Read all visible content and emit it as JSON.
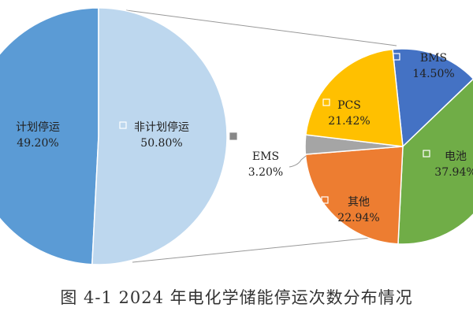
{
  "chart_data": {
    "type": "pie",
    "subtype": "pie-of-pie",
    "title": "图 4-1 2024 年电化学储能停运次数分布情况",
    "main": {
      "slices": [
        {
          "name": "计划停运",
          "value": 49.2,
          "label": "49.20%",
          "color": "#5b9bd5"
        },
        {
          "name": "非计划停运",
          "value": 50.8,
          "label": "50.80%",
          "color": "#bdd7ee"
        }
      ]
    },
    "breakdown": {
      "of": "非计划停运",
      "slices": [
        {
          "name": "BMS",
          "value": 14.5,
          "label": "14.50%",
          "color": "#4472c4"
        },
        {
          "name": "电池",
          "value": 37.94,
          "label": "37.94%",
          "color": "#70ad47"
        },
        {
          "name": "其他",
          "value": 22.94,
          "label": "22.94%",
          "color": "#ed7d31"
        },
        {
          "name": "EMS",
          "value": 3.2,
          "label": "3.20%",
          "color": "#a5a5a5"
        },
        {
          "name": "PCS",
          "value": 21.42,
          "label": "21.42%",
          "color": "#ffc000"
        }
      ]
    }
  }
}
